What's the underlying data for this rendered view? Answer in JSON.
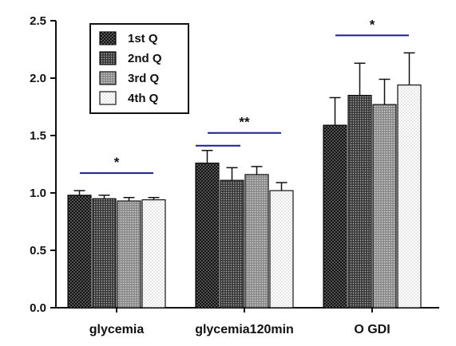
{
  "chart_data": {
    "type": "bar",
    "categories": [
      "glycemia",
      "glycemia120min",
      "O GDI"
    ],
    "series": [
      {
        "name": "1st Q",
        "values": [
          0.98,
          1.26,
          1.59
        ],
        "errors": [
          0.04,
          0.11,
          0.24
        ]
      },
      {
        "name": "2nd Q",
        "values": [
          0.95,
          1.11,
          1.85
        ],
        "errors": [
          0.03,
          0.11,
          0.28
        ]
      },
      {
        "name": "3rd Q",
        "values": [
          0.93,
          1.16,
          1.77
        ],
        "errors": [
          0.03,
          0.07,
          0.22
        ]
      },
      {
        "name": "4th Q",
        "values": [
          0.94,
          1.02,
          1.94
        ],
        "errors": [
          0.02,
          0.07,
          0.28
        ]
      }
    ],
    "ylim": [
      0,
      2.5
    ],
    "yticks": [
      "0.0",
      "0.5",
      "1.0",
      "1.5",
      "2.0",
      "2.5"
    ],
    "title": "",
    "xlabel": "",
    "ylabel": "",
    "legend_position": "top-left",
    "grid": false,
    "series_colors": [
      "#1a1a1a",
      "#5c5c5c",
      "#9a9a9a",
      "#ececec"
    ],
    "significance": [
      {
        "category_index": 0,
        "label": "*"
      },
      {
        "category_index": 1,
        "label": "**"
      },
      {
        "category_index": 2,
        "label": "*"
      }
    ],
    "significance_line_color": "#1c1c8c"
  }
}
